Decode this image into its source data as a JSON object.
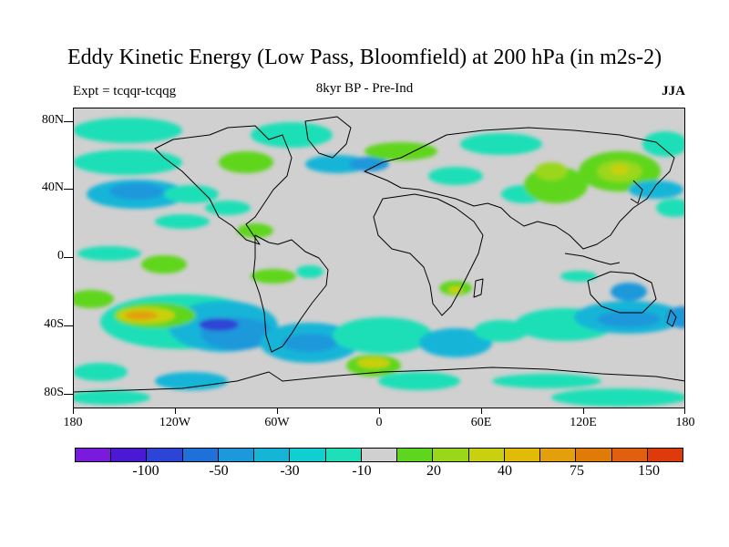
{
  "header": {
    "title": "Eddy Kinetic Energy (Low Pass, Bloomfield) at 200 hPa (in m2s-2)",
    "experiment": "Expt = tcqqr-tcqqg",
    "period": "8kyr BP - Pre-Ind",
    "season": "JJA"
  },
  "axes": {
    "lat_labels": [
      "80N",
      "40N",
      "0",
      "40S",
      "80S"
    ],
    "lon_labels": [
      "180",
      "120W",
      "60W",
      "0",
      "60E",
      "120E",
      "180"
    ]
  },
  "colorbar": {
    "colors": [
      "#7a1adc",
      "#4b18d3",
      "#2d45d6",
      "#1f70d8",
      "#1d98db",
      "#15b5d8",
      "#0fcfd0",
      "#1edfb7",
      "#d0d0d0",
      "#5ed61f",
      "#9ad71a",
      "#c8d010",
      "#e0bc08",
      "#e3a00c",
      "#e07b08",
      "#e0600f",
      "#de3a0c"
    ],
    "labels": [
      "-100",
      "-50",
      "-30",
      "-10",
      "20",
      "40",
      "75",
      "150"
    ]
  },
  "map_colors": {
    "land_background": "#d0d0d0",
    "coastline": "#000000"
  }
}
